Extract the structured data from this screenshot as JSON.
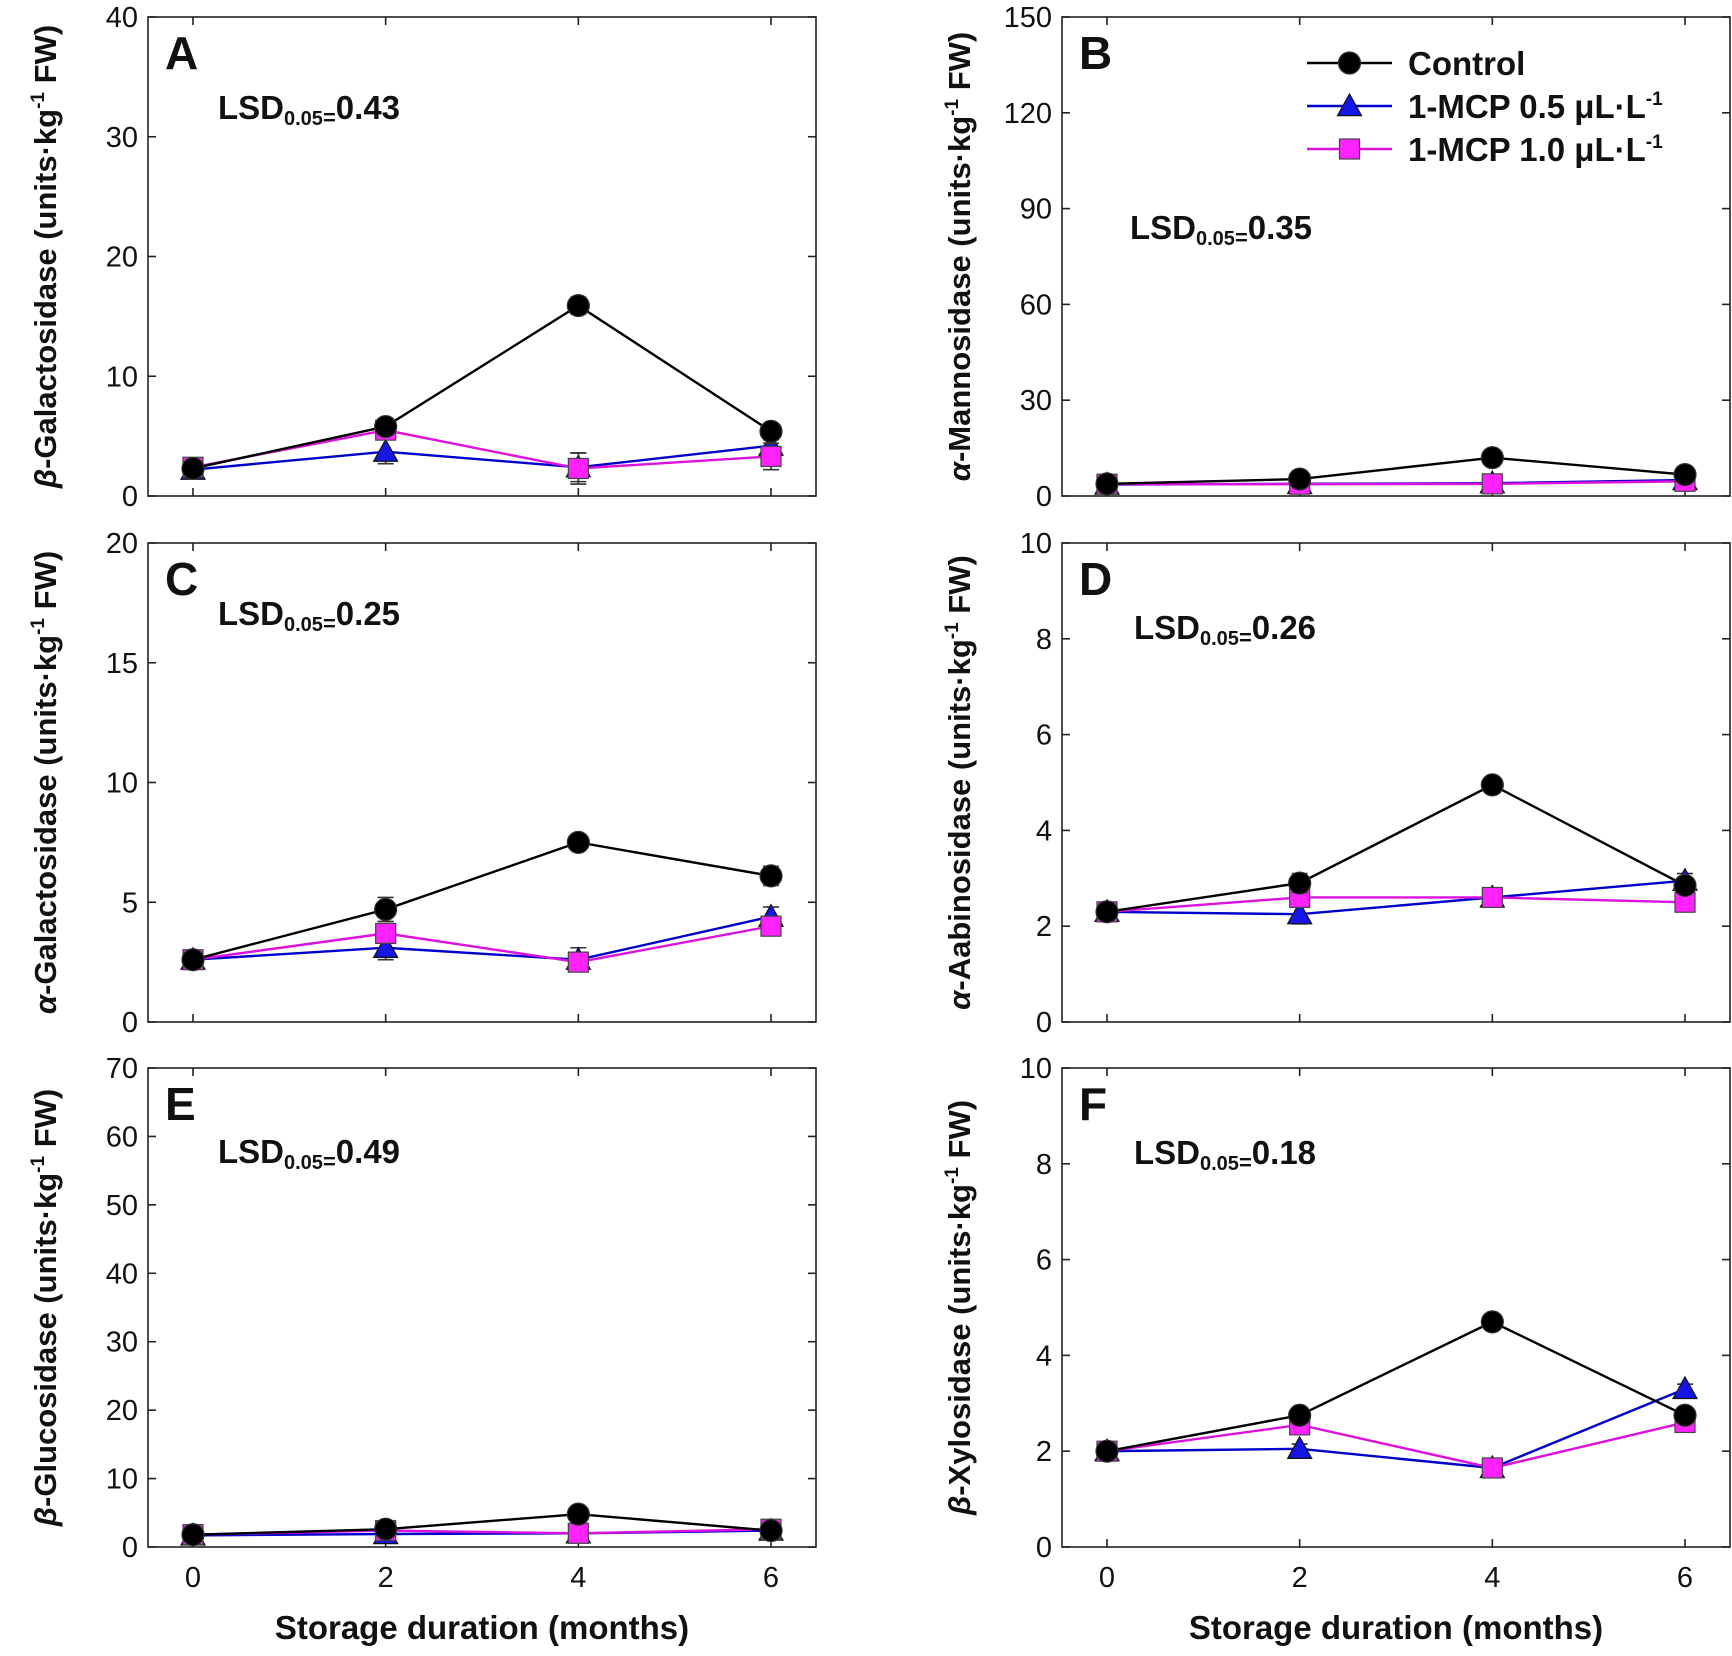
{
  "chart_data": [
    {
      "type": "line",
      "panel": "A",
      "ylabel_greek": "β",
      "ylabel_enzyme": "-Galactosidase",
      "ylabel_units_pre": "(units·kg",
      "ylabel_units_sup": "-1",
      "ylabel_units_post": " FW)",
      "xlabel": "",
      "ylim": [
        0,
        40
      ],
      "yticks": [
        0,
        10,
        20,
        30,
        40
      ],
      "x": [
        0,
        2,
        4,
        6
      ],
      "lsd_label": "LSD",
      "lsd_sub": "0.05",
      "lsd_sep": "=",
      "lsd_value": "0.43",
      "series": [
        {
          "name": "Control",
          "values": [
            2.3,
            5.8,
            15.9,
            5.4
          ],
          "errors": [
            0.4,
            0.5,
            0.7,
            0.6
          ]
        },
        {
          "name": "1-MCP 0.5 μL·L-1",
          "values": [
            2.2,
            3.7,
            2.4,
            4.2
          ],
          "errors": [
            0.4,
            1.0,
            1.2,
            0.5
          ]
        },
        {
          "name": "1-MCP 1.0 μL·L-1",
          "values": [
            2.4,
            5.5,
            2.3,
            3.3
          ],
          "errors": [
            0.4,
            0.5,
            1.3,
            1.1
          ]
        }
      ]
    },
    {
      "type": "line",
      "panel": "B",
      "ylabel_greek": "α",
      "ylabel_enzyme": "-Mannosidase",
      "ylabel_units_pre": "(units·kg",
      "ylabel_units_sup": "-1",
      "ylabel_units_post": " FW)",
      "xlabel": "",
      "ylim": [
        0,
        150
      ],
      "yticks": [
        0,
        30,
        60,
        90,
        120,
        150
      ],
      "x": [
        0,
        2,
        4,
        6
      ],
      "lsd_label": "LSD",
      "lsd_sub": "0.05",
      "lsd_sep": "=",
      "lsd_value": "0.35",
      "series": [
        {
          "name": "Control",
          "values": [
            3.8,
            5.3,
            12.0,
            6.7
          ],
          "errors": [
            0.8,
            1.2,
            1.5,
            1.2
          ]
        },
        {
          "name": "1-MCP 0.5 μL·L-1",
          "values": [
            3.6,
            3.8,
            4.0,
            5.0
          ],
          "errors": [
            0.8,
            0.8,
            0.8,
            1.0
          ]
        },
        {
          "name": "1-MCP 1.0 μL·L-1",
          "values": [
            3.7,
            3.7,
            3.8,
            4.6
          ],
          "errors": [
            0.8,
            0.8,
            0.8,
            1.0
          ]
        }
      ]
    },
    {
      "type": "line",
      "panel": "C",
      "ylabel_greek": "α",
      "ylabel_enzyme": "-Galactosidase",
      "ylabel_units_pre": "(units·kg",
      "ylabel_units_sup": "-1",
      "ylabel_units_post": " FW)",
      "xlabel": "",
      "ylim": [
        0,
        20
      ],
      "yticks": [
        0,
        5,
        10,
        15,
        20
      ],
      "x": [
        0,
        2,
        4,
        6
      ],
      "lsd_label": "LSD",
      "lsd_sub": "0.05",
      "lsd_sep": "=",
      "lsd_value": "0.25",
      "series": [
        {
          "name": "Control",
          "values": [
            2.6,
            4.7,
            7.5,
            6.1
          ],
          "errors": [
            0.3,
            0.5,
            0.3,
            0.4
          ]
        },
        {
          "name": "1-MCP 0.5 μL·L-1",
          "values": [
            2.6,
            3.1,
            2.6,
            4.4
          ],
          "errors": [
            0.3,
            0.5,
            0.5,
            0.4
          ]
        },
        {
          "name": "1-MCP 1.0 μL·L-1",
          "values": [
            2.6,
            3.7,
            2.5,
            4.0
          ],
          "errors": [
            0.3,
            0.4,
            0.3,
            0.3
          ]
        }
      ]
    },
    {
      "type": "line",
      "panel": "D",
      "ylabel_greek": "α",
      "ylabel_enzyme": "-Aabinosidase",
      "ylabel_units_pre": "(units·kg",
      "ylabel_units_sup": "-1",
      "ylabel_units_post": " FW)",
      "xlabel": "",
      "ylim": [
        0,
        10
      ],
      "yticks": [
        0,
        2,
        4,
        6,
        8,
        10
      ],
      "x": [
        0,
        2,
        4,
        6
      ],
      "lsd_label": "LSD",
      "lsd_sub": "0.05",
      "lsd_sep": "=",
      "lsd_value": "0.26",
      "series": [
        {
          "name": "Control",
          "values": [
            2.3,
            2.9,
            4.95,
            2.85
          ],
          "errors": [
            0.15,
            0.2,
            0.15,
            0.15
          ]
        },
        {
          "name": "1-MCP 0.5 μL·L-1",
          "values": [
            2.3,
            2.25,
            2.6,
            2.95
          ],
          "errors": [
            0.15,
            0.2,
            0.15,
            0.15
          ]
        },
        {
          "name": "1-MCP 1.0 μL·L-1",
          "values": [
            2.3,
            2.6,
            2.6,
            2.5
          ],
          "errors": [
            0.15,
            0.2,
            0.15,
            0.15
          ]
        }
      ]
    },
    {
      "type": "line",
      "panel": "E",
      "ylabel_greek": "β",
      "ylabel_enzyme": "-Glucosidase",
      "ylabel_units_pre": "(units·kg",
      "ylabel_units_sup": "-1",
      "ylabel_units_post": " FW)",
      "xlabel": "Storage duration (months)",
      "ylim": [
        0,
        70
      ],
      "yticks": [
        0,
        10,
        20,
        30,
        40,
        50,
        60,
        70
      ],
      "x": [
        0,
        2,
        4,
        6
      ],
      "lsd_label": "LSD",
      "lsd_sub": "0.05",
      "lsd_sep": "=",
      "lsd_value": "0.49",
      "series": [
        {
          "name": "Control",
          "values": [
            1.8,
            2.6,
            4.8,
            2.4
          ],
          "errors": [
            0.6,
            0.6,
            0.8,
            0.6
          ]
        },
        {
          "name": "1-MCP 0.5 μL·L-1",
          "values": [
            1.7,
            1.9,
            2.0,
            2.4
          ],
          "errors": [
            0.6,
            0.6,
            0.6,
            0.6
          ]
        },
        {
          "name": "1-MCP 1.0 μL·L-1",
          "values": [
            1.8,
            2.4,
            2.0,
            2.6
          ],
          "errors": [
            0.6,
            0.6,
            0.6,
            0.6
          ]
        }
      ]
    },
    {
      "type": "line",
      "panel": "F",
      "ylabel_greek": "β",
      "ylabel_enzyme": "-Xylosidase",
      "ylabel_units_pre": "(units·kg",
      "ylabel_units_sup": "-1",
      "ylabel_units_post": " FW)",
      "xlabel": "Storage duration (months)",
      "ylim": [
        0,
        10
      ],
      "yticks": [
        0,
        2,
        4,
        6,
        8,
        10
      ],
      "x": [
        0,
        2,
        4,
        6
      ],
      "lsd_label": "LSD",
      "lsd_sub": "0.05",
      "lsd_sep": "=",
      "lsd_value": "0.18",
      "series": [
        {
          "name": "Control",
          "values": [
            2.0,
            2.75,
            4.7,
            2.75
          ],
          "errors": [
            0.1,
            0.1,
            0.15,
            0.1
          ]
        },
        {
          "name": "1-MCP 0.5 μL·L-1",
          "values": [
            2.0,
            2.05,
            1.65,
            3.3
          ],
          "errors": [
            0.1,
            0.1,
            0.1,
            0.1
          ]
        },
        {
          "name": "1-MCP 1.0 μL·L-1",
          "values": [
            2.0,
            2.55,
            1.65,
            2.6
          ],
          "errors": [
            0.1,
            0.1,
            0.1,
            0.1
          ]
        }
      ]
    }
  ],
  "legend": {
    "placement": "top-right of panel B",
    "items": [
      {
        "text": "Control",
        "sup": "",
        "marker": "circle",
        "color": "#000000",
        "fill": "#000000"
      },
      {
        "text": "1-MCP 0.5 μL·L",
        "sup": "-1",
        "marker": "triangle",
        "color": "#0000cc",
        "fill": "#1515e6"
      },
      {
        "text": "1-MCP 1.0 μL·L",
        "sup": "-1",
        "marker": "square",
        "color": "#dd11dd",
        "fill": "#ff22ff"
      }
    ]
  },
  "series_styles": [
    {
      "marker": "circle",
      "line": "#000000",
      "fill": "#000000"
    },
    {
      "marker": "triangle",
      "line": "#0000cc",
      "fill": "#1515e6"
    },
    {
      "marker": "square",
      "line": "#dd11dd",
      "fill": "#ff22ff"
    }
  ]
}
